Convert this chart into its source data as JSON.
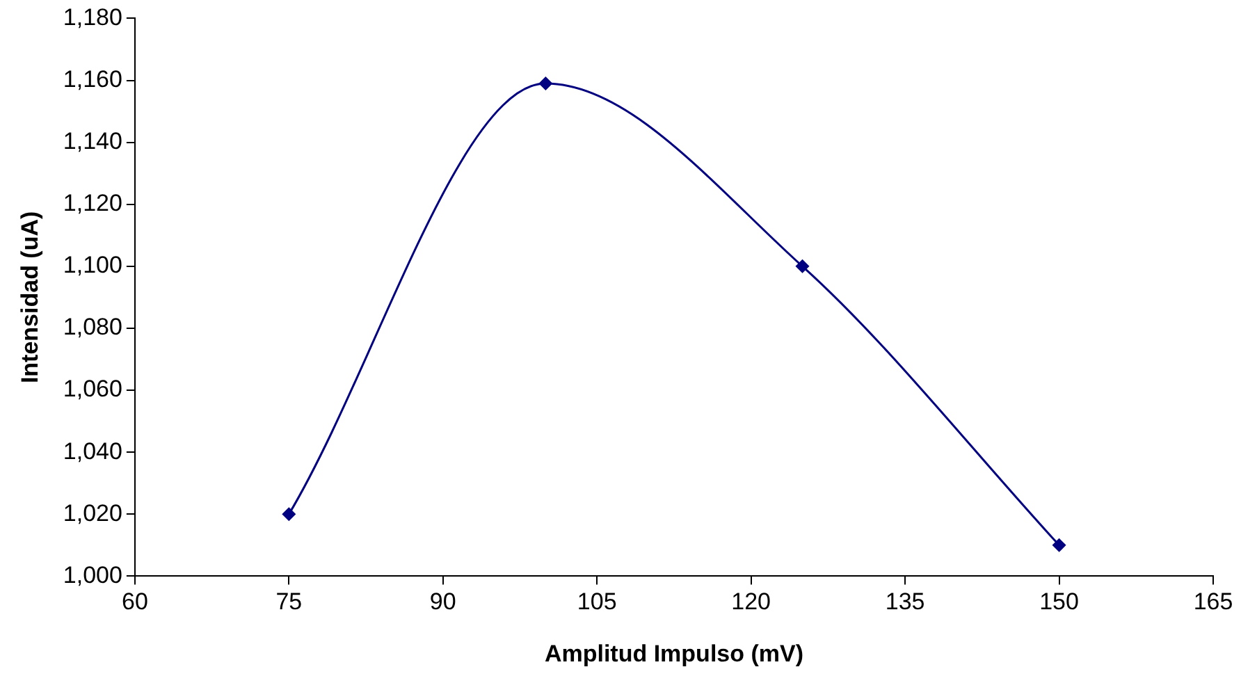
{
  "chart_data": {
    "type": "line",
    "xlabel": "Amplitud Impulso (mV)",
    "ylabel": "Intensidad (uA)",
    "x": [
      75,
      100,
      125,
      150
    ],
    "series": [
      {
        "color": "#000080",
        "values": [
          1020,
          1159,
          1100,
          1010
        ]
      }
    ],
    "xlim": [
      60,
      165
    ],
    "xticks": [
      60,
      75,
      90,
      105,
      120,
      135,
      150,
      165
    ],
    "ylim": [
      1000,
      1180
    ],
    "yticks": [
      {
        "value": 1000,
        "label": "1,000"
      },
      {
        "value": 1020,
        "label": "1,020"
      },
      {
        "value": 1040,
        "label": "1,040"
      },
      {
        "value": 1060,
        "label": "1,060"
      },
      {
        "value": 1080,
        "label": "1,080"
      },
      {
        "value": 1100,
        "label": "1,100"
      },
      {
        "value": 1120,
        "label": "1,120"
      },
      {
        "value": 1140,
        "label": "1,140"
      },
      {
        "value": 1160,
        "label": "1,160"
      },
      {
        "value": 1180,
        "label": "1,180"
      }
    ],
    "marker": "diamond",
    "line_style": "solid",
    "grid": false,
    "legend": false
  }
}
